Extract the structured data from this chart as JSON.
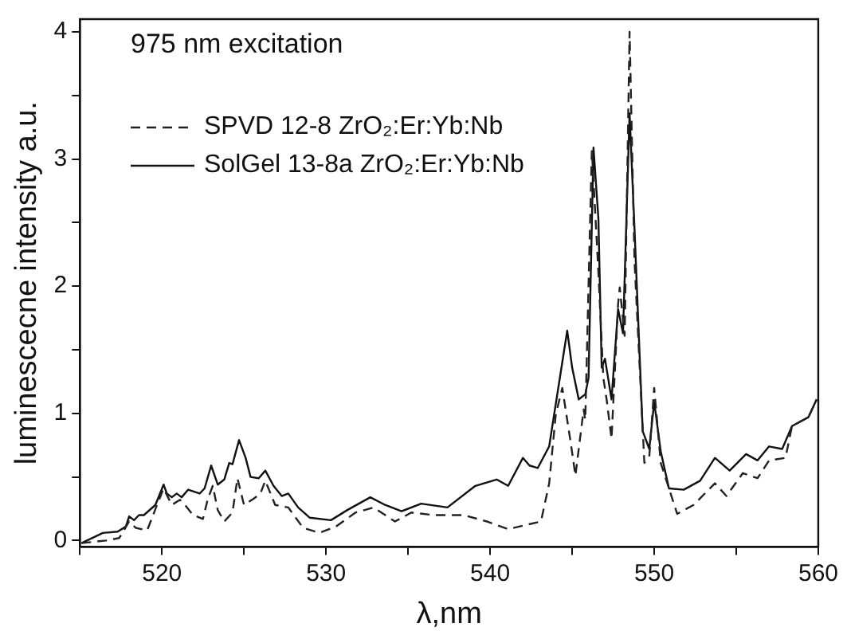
{
  "chart_data": {
    "type": "line",
    "xlabel": "λ,nm",
    "ylabel": "luminescecne intensity a.u.",
    "annotations": [
      "975 nm excitation"
    ],
    "xlim": [
      515,
      560
    ],
    "ylim": [
      -0.05,
      4.1
    ],
    "xticks": [
      {
        "value": 515,
        "label": null
      },
      520,
      {
        "value": 525,
        "label": null
      },
      530,
      {
        "value": 535,
        "label": null
      },
      540,
      {
        "value": 545,
        "label": null
      },
      550,
      {
        "value": 555,
        "label": null
      },
      560
    ],
    "yticks": [
      0,
      {
        "value": 0.5,
        "label": null
      },
      1,
      {
        "value": 1.5,
        "label": null
      },
      2,
      {
        "value": 2.5,
        "label": null
      },
      3,
      {
        "value": 3.5,
        "label": null
      },
      4
    ],
    "grid": false,
    "legend": "top left",
    "series": [
      {
        "name": "SPVD 12-8 ZrO₂:Er:Yb:Nb",
        "color": "#222222",
        "line_style": "dashed",
        "x": [
          515.1,
          516.6,
          517.4,
          518.0,
          518.4,
          519.1,
          519.7,
          520.1,
          520.6,
          521.1,
          521.4,
          521.9,
          522.5,
          522.8,
          523.1,
          523.4,
          523.8,
          524.3,
          524.6,
          525.0,
          525.6,
          526.0,
          526.3,
          526.9,
          527.7,
          528.6,
          529.6,
          530.6,
          531.8,
          532.9,
          534.2,
          535.2,
          536.6,
          538.4,
          539.8,
          541.1,
          543.1,
          543.6,
          544.0,
          544.4,
          544.9,
          545.2,
          545.7,
          545.8,
          546.2,
          546.6,
          546.9,
          547.1,
          547.4,
          547.8,
          547.9,
          548.2,
          548.5,
          548.8,
          549.4,
          549.7,
          550.0,
          550.4,
          551.4,
          552.4,
          553.7,
          554.4,
          555.4,
          556.3,
          557.0,
          558.0,
          558.4,
          559.4,
          559.9
        ],
        "values": [
          -0.02,
          0.0,
          0.02,
          0.15,
          0.1,
          0.08,
          0.28,
          0.41,
          0.28,
          0.32,
          0.28,
          0.2,
          0.17,
          0.33,
          0.43,
          0.24,
          0.15,
          0.22,
          0.49,
          0.28,
          0.33,
          0.37,
          0.47,
          0.28,
          0.26,
          0.1,
          0.06,
          0.11,
          0.22,
          0.26,
          0.15,
          0.22,
          0.2,
          0.2,
          0.15,
          0.09,
          0.15,
          0.45,
          0.99,
          1.2,
          0.78,
          0.51,
          1.03,
          0.95,
          3.07,
          2.11,
          1.28,
          1.11,
          0.8,
          1.86,
          1.99,
          1.61,
          4.0,
          2.2,
          0.61,
          0.66,
          1.2,
          0.61,
          0.21,
          0.28,
          0.45,
          0.35,
          0.53,
          0.49,
          0.63,
          0.65,
          0.9,
          0.97,
          1.11
        ]
      },
      {
        "name": "SolGel 13-8a ZrO₂:Er:Yb:Nb",
        "color": "#111111",
        "line_style": "solid",
        "x": [
          515.1,
          516.4,
          517.3,
          517.8,
          518.0,
          518.3,
          518.6,
          518.9,
          519.6,
          520.1,
          520.3,
          520.6,
          520.9,
          521.2,
          521.6,
          522.3,
          522.6,
          523.0,
          523.4,
          523.8,
          524.1,
          524.3,
          524.7,
          525.1,
          525.4,
          525.9,
          526.3,
          526.8,
          527.3,
          527.7,
          528.3,
          529.0,
          530.3,
          531.3,
          532.7,
          533.6,
          534.6,
          535.8,
          537.4,
          539.1,
          540.4,
          541.1,
          542.0,
          542.4,
          542.9,
          543.6,
          543.9,
          544.3,
          544.7,
          545.0,
          545.4,
          545.8,
          546.0,
          546.3,
          546.6,
          546.8,
          547.0,
          547.4,
          547.8,
          548.1,
          548.5,
          548.8,
          549.3,
          549.7,
          550.0,
          550.4,
          550.9,
          551.8,
          552.8,
          553.7,
          554.6,
          555.6,
          556.3,
          557.0,
          557.8,
          558.4,
          559.4,
          559.9
        ],
        "values": [
          -0.02,
          0.06,
          0.07,
          0.11,
          0.19,
          0.16,
          0.2,
          0.2,
          0.28,
          0.44,
          0.37,
          0.34,
          0.37,
          0.34,
          0.4,
          0.37,
          0.41,
          0.59,
          0.44,
          0.48,
          0.61,
          0.6,
          0.79,
          0.65,
          0.5,
          0.49,
          0.55,
          0.43,
          0.35,
          0.37,
          0.26,
          0.18,
          0.16,
          0.24,
          0.34,
          0.28,
          0.23,
          0.29,
          0.26,
          0.43,
          0.48,
          0.43,
          0.65,
          0.59,
          0.57,
          0.74,
          0.99,
          1.32,
          1.65,
          1.36,
          1.11,
          1.15,
          1.28,
          3.09,
          2.53,
          1.36,
          1.43,
          1.11,
          1.82,
          1.63,
          3.36,
          2.45,
          0.86,
          0.72,
          1.09,
          0.7,
          0.41,
          0.4,
          0.47,
          0.65,
          0.55,
          0.68,
          0.63,
          0.74,
          0.72,
          0.9,
          0.97,
          1.11
        ]
      }
    ]
  }
}
